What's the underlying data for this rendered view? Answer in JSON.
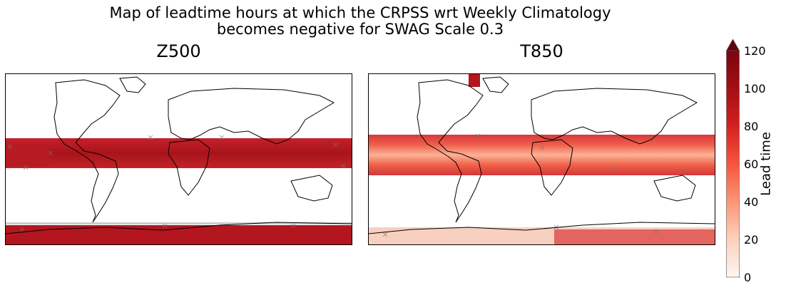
{
  "figure": {
    "title_line1": "Map of leadtime hours at which the CRPSS wrt Weekly Climatology",
    "title_line2": "becomes negative for SWAG Scale 0.3"
  },
  "panels": [
    {
      "title": "Z500"
    },
    {
      "title": "T850"
    }
  ],
  "colorbar": {
    "label": "Lead time",
    "ticks": [
      "0",
      "20",
      "40",
      "60",
      "80",
      "100",
      "120"
    ],
    "min": 0,
    "max": 120,
    "extend": "max",
    "colormap": "Reds",
    "colors": [
      "#fff5f0",
      "#fdd0bc",
      "#fc9777",
      "#f6553d",
      "#d32020",
      "#a50f15",
      "#67000d"
    ]
  }
}
